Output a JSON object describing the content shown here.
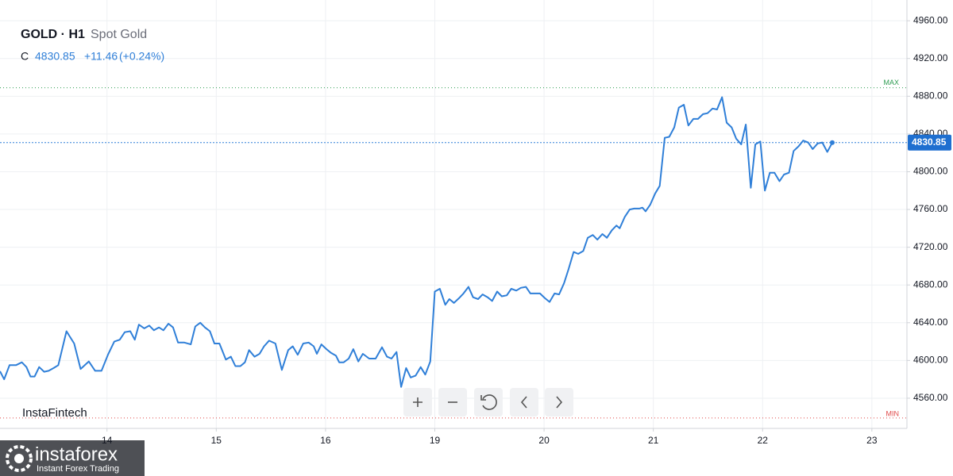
{
  "header": {
    "symbol": "GOLD · H1",
    "name": "Spot Gold",
    "close_label": "C",
    "close": "4830.85",
    "change": "+11.46",
    "change_pct": "(+0.24%)"
  },
  "chart_data": {
    "type": "line",
    "color": "#2f7fd8",
    "x": [
      -23.5,
      -22.6,
      -21.4,
      -20.0,
      -18.7,
      -17.7,
      -16.8,
      -15.9,
      -14.9,
      -13.8,
      -12.8,
      -11.7,
      -10.7,
      -8.9,
      -7.2,
      -5.8,
      -4.0,
      -2.6,
      -1.2,
      0.2,
      1.6,
      2.8,
      3.9,
      5.1,
      6.1,
      7.0,
      8.2,
      9.3,
      10.3,
      11.4,
      12.4,
      13.5,
      14.5,
      15.6,
      17.0,
      18.4,
      19.4,
      20.5,
      21.5,
      22.6,
      23.6,
      24.7,
      26.1,
      27.2,
      28.2,
      29.3,
      30.3,
      31.2,
      32.4,
      33.5,
      34.5,
      35.6,
      37.0,
      38.4,
      39.8,
      40.8,
      41.9,
      43.1,
      44.3,
      45.4,
      46.1,
      47.1,
      48.2,
      49.2,
      50.3,
      51.0,
      52.0,
      53.1,
      54.1,
      55.2,
      56.2,
      57.6,
      59.0,
      60.4,
      61.5,
      62.5,
      63.6,
      64.6,
      65.7,
      66.7,
      67.8,
      68.9,
      69.9,
      71.0,
      72.0,
      73.1,
      74.3,
      75.2,
      76.2,
      77.3,
      78.3,
      79.4,
      80.4,
      81.5,
      82.5,
      83.6,
      84.6,
      85.7,
      86.7,
      87.8,
      88.8,
      89.9,
      90.9,
      92.0,
      93.0,
      94.1,
      95.1,
      96.2,
      97.2,
      98.3,
      99.3,
      100.4,
      101.4,
      102.5,
      103.5,
      104.6,
      105.6,
      106.7,
      107.7,
      108.8,
      109.8,
      110.9,
      111.9,
      112.6,
      113.7,
      114.8,
      115.8,
      116.9,
      117.6,
      118.3,
      119.3,
      120.4,
      121.4,
      122.5,
      123.5,
      124.6,
      125.6,
      126.7,
      127.7,
      128.8,
      129.8,
      130.9,
      131.9,
      133.0,
      134.0,
      135.1,
      136.1,
      137.2,
      138.2,
      139.3,
      140.3,
      141.4,
      142.4,
      143.5,
      144.5,
      145.6,
      146.6,
      147.7,
      148.7,
      149.8,
      150.8,
      151.9,
      152.9,
      154.0,
      155.0,
      156.1,
      157.1,
      158.2,
      159.3
    ],
    "values": [
      4588.6,
      4580,
      4595,
      4595,
      4598,
      4593,
      4583,
      4583,
      4593,
      4588,
      4589,
      4592,
      4595,
      4631,
      4618,
      4591,
      4599,
      4589,
      4589,
      4606,
      4620,
      4622,
      4630,
      4631,
      4622,
      4638,
      4634,
      4637,
      4632,
      4635,
      4632,
      4639,
      4635,
      4619,
      4619,
      4617,
      4636,
      4640,
      4635,
      4631,
      4618,
      4618,
      4601,
      4604,
      4594,
      4594,
      4598,
      4611,
      4604,
      4607,
      4615,
      4621,
      4618,
      4590,
      4611,
      4615,
      4606,
      4618,
      4619,
      4615,
      4607,
      4617,
      4612,
      4608,
      4605,
      4598,
      4598,
      4602,
      4612,
      4599,
      4607,
      4602,
      4602,
      4614,
      4604,
      4602,
      4609,
      4572,
      4592,
      4582,
      4584,
      4593,
      4585,
      4599,
      4673,
      4676,
      4659,
      4665,
      4661,
      4666,
      4671,
      4678,
      4667,
      4665,
      4670,
      4667,
      4663,
      4673,
      4668,
      4669,
      4676,
      4674,
      4677,
      4678,
      4671,
      4671,
      4671,
      4666,
      4662,
      4671,
      4670,
      4682,
      4697,
      4715,
      4713,
      4716,
      4730,
      4733,
      4728,
      4734,
      4730,
      4738,
      4743,
      4740,
      4752,
      4760,
      4761,
      4761,
      4762,
      4758,
      4765,
      4777,
      4785,
      4836,
      4837,
      4847,
      4868,
      4871,
      4849,
      4856,
      4856,
      4861,
      4862,
      4867,
      4866,
      4879,
      4852,
      4847,
      4835,
      4829,
      4850,
      4783,
      4829,
      4832,
      4780,
      4799,
      4799,
      4790,
      4797,
      4799,
      4822,
      4827,
      4833,
      4831,
      4824,
      4830,
      4831,
      4821,
      4830.85
    ],
    "xlim": [
      -23.5,
      175.7
    ],
    "ylim": [
      4528,
      4982
    ],
    "xticks": [
      {
        "value": 0,
        "label": "14"
      },
      {
        "value": 24,
        "label": "15"
      },
      {
        "value": 48,
        "label": "16"
      },
      {
        "value": 72,
        "label": "19"
      },
      {
        "value": 96,
        "label": "20"
      },
      {
        "value": 120,
        "label": "21"
      },
      {
        "value": 144,
        "label": "22"
      },
      {
        "value": 168,
        "label": "23"
      }
    ],
    "yticks": [
      {
        "value": 4560,
        "label": "4560.00"
      },
      {
        "value": 4600,
        "label": "4600.00"
      },
      {
        "value": 4640,
        "label": "4640.00"
      },
      {
        "value": 4680,
        "label": "4680.00"
      },
      {
        "value": 4720,
        "label": "4720.00"
      },
      {
        "value": 4760,
        "label": "4760.00"
      },
      {
        "value": 4800,
        "label": "4800.00"
      },
      {
        "value": 4840,
        "label": "4840.00"
      },
      {
        "value": 4880,
        "label": "4880.00"
      },
      {
        "value": 4920,
        "label": "4920.00"
      },
      {
        "value": 4960,
        "label": "4960.00"
      }
    ],
    "grid": true,
    "last_price": {
      "value": 4830.85,
      "label": "4830.85"
    },
    "max_line": {
      "value": 4889,
      "label": "MAX"
    },
    "min_line": {
      "value": 4539,
      "label": "MIN"
    }
  },
  "watermark": "InstaFintech",
  "logo": {
    "name": "instaforex",
    "tagline": "Instant Forex Trading"
  }
}
